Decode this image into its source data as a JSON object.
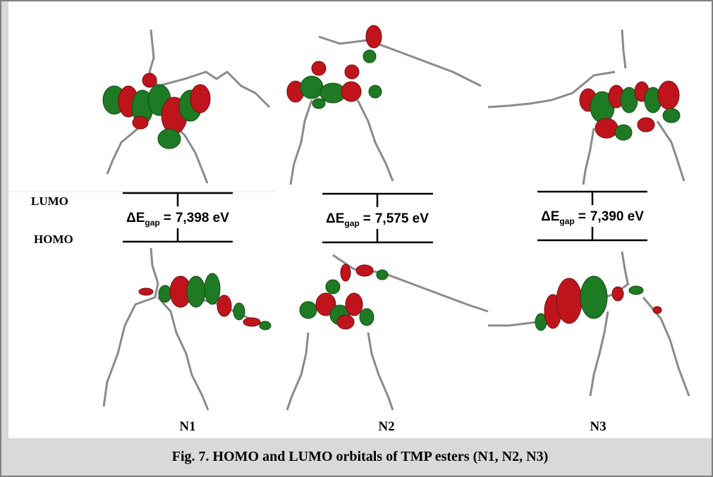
{
  "figure": {
    "levels": {
      "lumo": "LUMO",
      "homo": "HOMO"
    },
    "panels": [
      {
        "label": "N1",
        "gap": {
          "symbol": "ΔE",
          "subscript": "gap",
          "equals": "=",
          "value": "7,398 eV"
        }
      },
      {
        "label": "N2",
        "gap": {
          "symbol": "ΔE",
          "subscript": "gap",
          "equals": "=",
          "value": "7,575 eV"
        }
      },
      {
        "label": "N3",
        "gap": {
          "symbol": "ΔE",
          "subscript": "gap",
          "equals": "=",
          "value": "7,390 eV"
        }
      }
    ],
    "caption": "Fig. 7. HOMO and LUMO orbitals of TMP esters (N1, N2, N3)"
  }
}
